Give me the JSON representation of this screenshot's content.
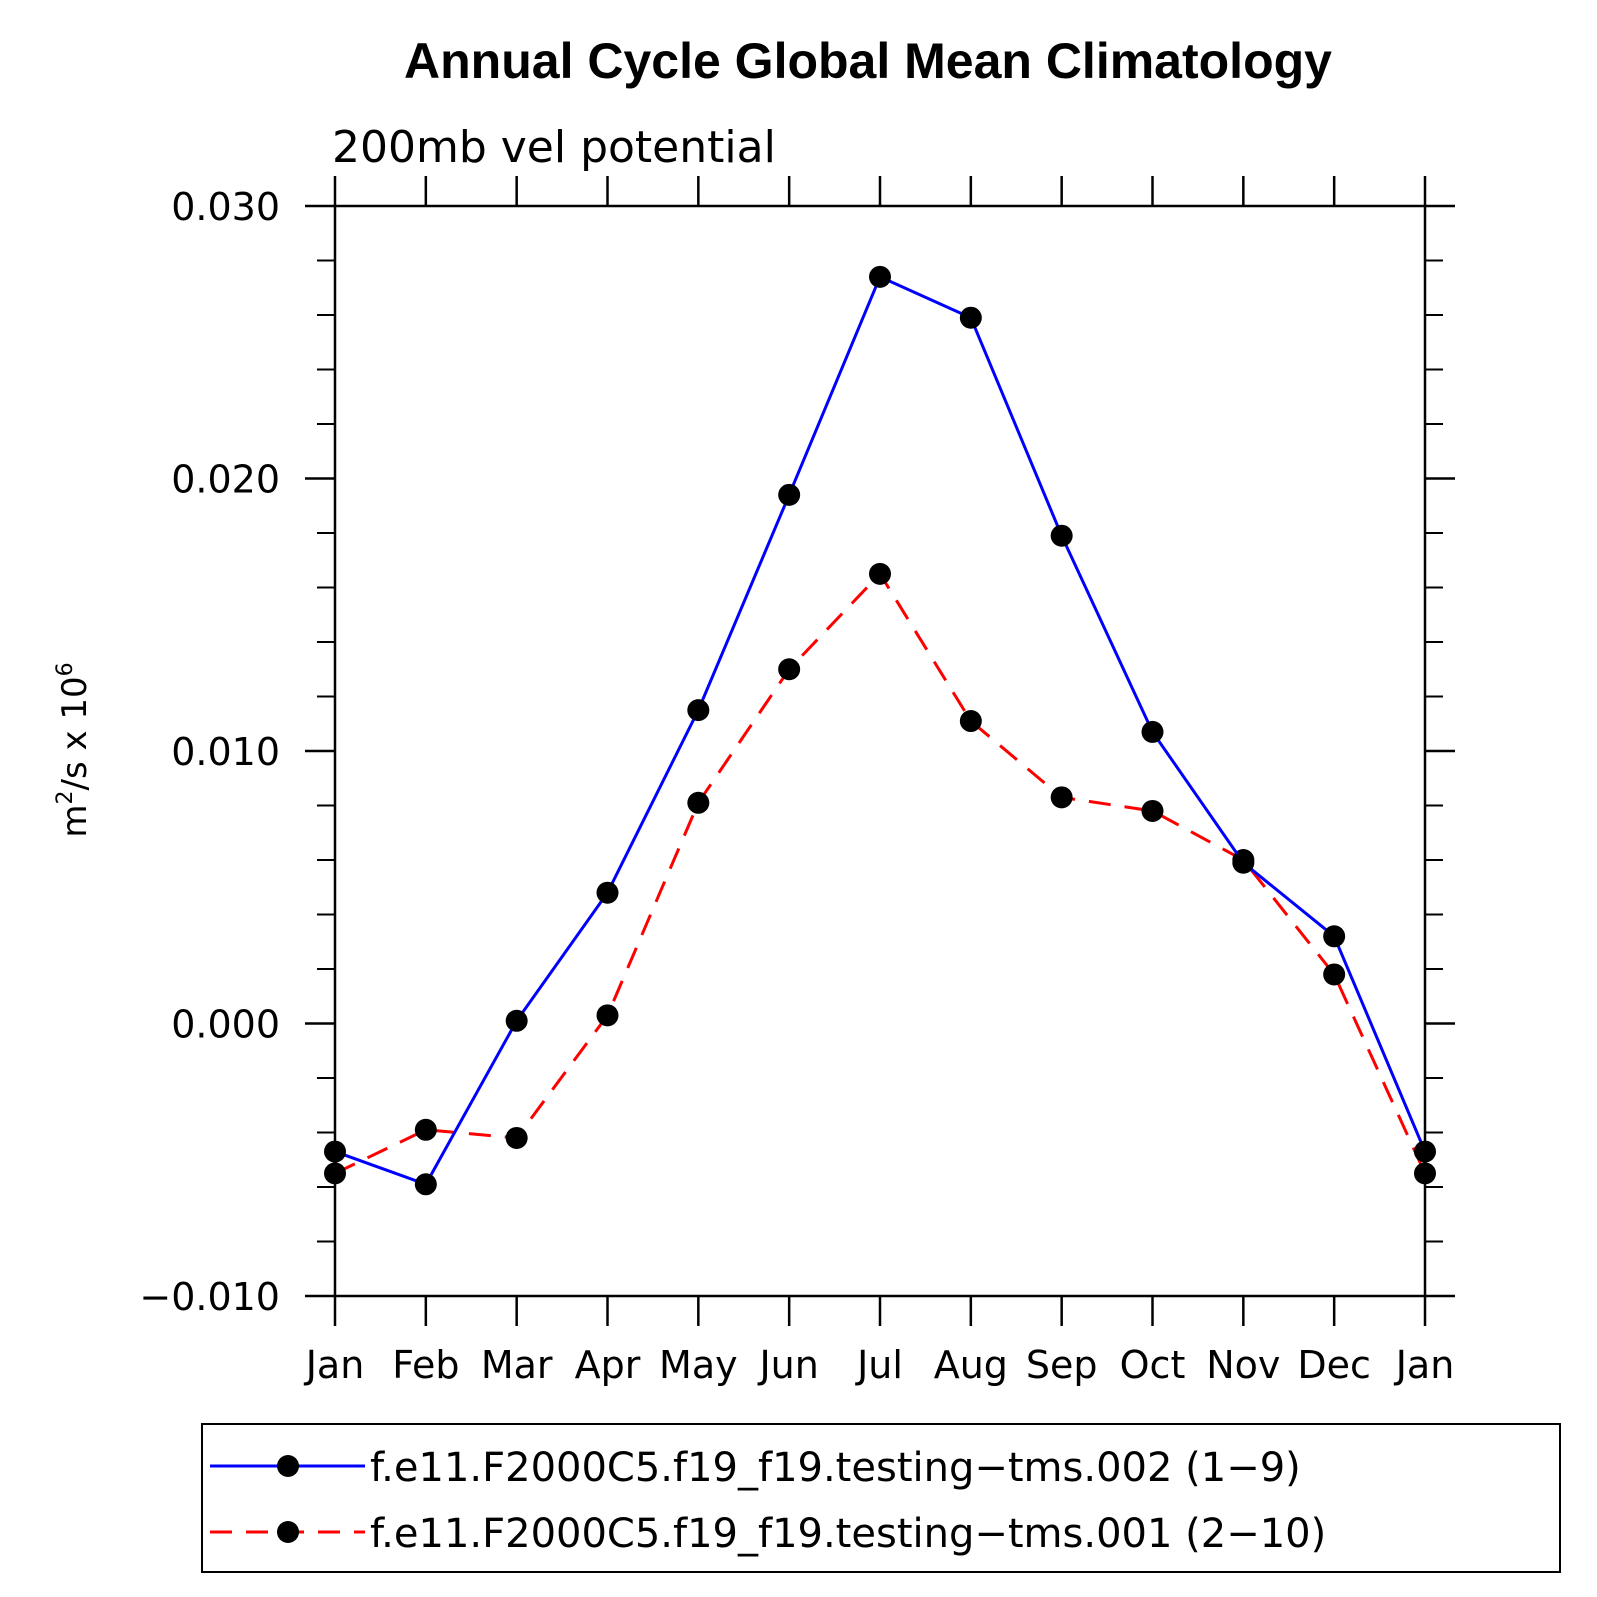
{
  "chart_data": {
    "type": "line",
    "title": "Annual Cycle Global Mean Climatology",
    "subtitle": "200mb vel potential",
    "ylabel_base": "m",
    "ylabel_sup1": "2",
    "ylabel_mid": "/s x 10",
    "ylabel_sup2": "6",
    "xlabel": "",
    "categories": [
      "Jan",
      "Feb",
      "Mar",
      "Apr",
      "May",
      "Jun",
      "Jul",
      "Aug",
      "Sep",
      "Oct",
      "Nov",
      "Dec",
      "Jan"
    ],
    "ylim": [
      -0.01,
      0.03
    ],
    "yticks": [
      -0.01,
      0.0,
      0.01,
      0.02,
      0.03
    ],
    "ytick_labels": [
      "−0.010",
      "0.000",
      "0.010",
      "0.020",
      "0.030"
    ],
    "grid": false,
    "legend_position": "bottom",
    "series": [
      {
        "name": "f.e11.F2000C5.f19_f19.testing−tms.002 (1−9)",
        "color": "#0000ff",
        "style": "solid",
        "values": [
          -0.0047,
          -0.0059,
          0.0001,
          0.0048,
          0.0115,
          0.0194,
          0.0274,
          0.0259,
          0.0179,
          0.0107,
          0.0059,
          0.0032,
          -0.0047
        ]
      },
      {
        "name": "f.e11.F2000C5.f19_f19.testing−tms.001 (2−10)",
        "color": "#ff0000",
        "style": "dashed",
        "values": [
          -0.0055,
          -0.0039,
          -0.0042,
          0.0003,
          0.0081,
          0.013,
          0.0165,
          0.0111,
          0.0083,
          0.0078,
          0.006,
          0.0018,
          -0.0055
        ]
      }
    ]
  }
}
